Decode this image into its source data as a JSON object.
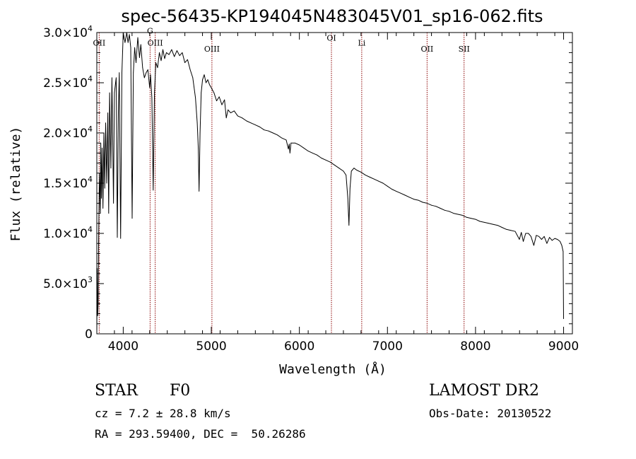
{
  "chart_data": {
    "type": "line",
    "title": "spec-56435-KP194045N483045V01_sp16-062.fits",
    "xlabel": "Wavelength (Å)",
    "ylabel": "Flux (relative)",
    "xlim": [
      3700,
      9100
    ],
    "ylim": [
      0,
      30000
    ],
    "x_ticks": [
      {
        "value": 4000,
        "label": "4000"
      },
      {
        "value": 5000,
        "label": "5000"
      },
      {
        "value": 6000,
        "label": "6000"
      },
      {
        "value": 7000,
        "label": "7000"
      },
      {
        "value": 8000,
        "label": "8000"
      },
      {
        "value": 9000,
        "label": "9000"
      }
    ],
    "y_ticks": [
      {
        "value": 0,
        "mant": "0",
        "exp": ""
      },
      {
        "value": 5000,
        "mant": "5.0×10",
        "exp": "3"
      },
      {
        "value": 10000,
        "mant": "1.0×10",
        "exp": "4"
      },
      {
        "value": 15000,
        "mant": "1.5×10",
        "exp": "4"
      },
      {
        "value": 20000,
        "mant": "2.0×10",
        "exp": "4"
      },
      {
        "value": 25000,
        "mant": "2.5×10",
        "exp": "4"
      },
      {
        "value": 30000,
        "mant": "3.0×10",
        "exp": "4"
      }
    ],
    "line_color": "#000000",
    "marker_color": "#8b0000",
    "spectral_lines": [
      {
        "label": "OII",
        "x": 3727,
        "label_y": 28700
      },
      {
        "label": "G",
        "x": 4305,
        "label_y": 29900
      },
      {
        "label": "OIII",
        "x": 4363,
        "label_y": 28700
      },
      {
        "label": "OIII",
        "x": 5007,
        "label_y": 28100
      },
      {
        "label": "OI",
        "x": 6364,
        "label_y": 29200
      },
      {
        "label": "Li",
        "x": 6708,
        "label_y": 28700
      },
      {
        "label": "OII",
        "x": 7450,
        "label_y": 28100
      },
      {
        "label": "SII",
        "x": 7870,
        "label_y": 28100
      }
    ],
    "series": [
      {
        "points": [
          [
            3700,
            200
          ],
          [
            3705,
            6500
          ],
          [
            3710,
            1800
          ],
          [
            3715,
            3000
          ],
          [
            3720,
            9000
          ],
          [
            3730,
            16000
          ],
          [
            3740,
            12000
          ],
          [
            3745,
            19000
          ],
          [
            3752,
            13500
          ],
          [
            3760,
            18500
          ],
          [
            3770,
            12500
          ],
          [
            3780,
            20000
          ],
          [
            3790,
            14500
          ],
          [
            3800,
            21000
          ],
          [
            3812,
            15000
          ],
          [
            3825,
            22000
          ],
          [
            3835,
            12000
          ],
          [
            3845,
            24000
          ],
          [
            3860,
            16500
          ],
          [
            3872,
            25500
          ],
          [
            3880,
            20000
          ],
          [
            3889,
            13000
          ],
          [
            3900,
            24000
          ],
          [
            3920,
            25500
          ],
          [
            3933,
            9600
          ],
          [
            3945,
            22000
          ],
          [
            3955,
            26000
          ],
          [
            3970,
            9500
          ],
          [
            3985,
            26000
          ],
          [
            4000,
            30000
          ],
          [
            4020,
            29000
          ],
          [
            4040,
            30200
          ],
          [
            4055,
            29000
          ],
          [
            4070,
            29800
          ],
          [
            4085,
            28500
          ],
          [
            4101,
            11500
          ],
          [
            4115,
            26000
          ],
          [
            4130,
            28500
          ],
          [
            4145,
            27000
          ],
          [
            4165,
            29500
          ],
          [
            4185,
            27500
          ],
          [
            4200,
            28800
          ],
          [
            4220,
            26500
          ],
          [
            4240,
            25500
          ],
          [
            4260,
            26000
          ],
          [
            4280,
            26300
          ],
          [
            4300,
            24500
          ],
          [
            4310,
            25800
          ],
          [
            4325,
            23500
          ],
          [
            4340,
            14300
          ],
          [
            4355,
            24000
          ],
          [
            4370,
            27000
          ],
          [
            4390,
            26500
          ],
          [
            4410,
            28000
          ],
          [
            4430,
            27200
          ],
          [
            4450,
            28300
          ],
          [
            4470,
            27400
          ],
          [
            4490,
            28000
          ],
          [
            4520,
            27800
          ],
          [
            4550,
            28300
          ],
          [
            4580,
            27600
          ],
          [
            4610,
            28200
          ],
          [
            4640,
            27700
          ],
          [
            4670,
            28000
          ],
          [
            4700,
            27000
          ],
          [
            4730,
            27300
          ],
          [
            4760,
            26300
          ],
          [
            4790,
            25500
          ],
          [
            4820,
            23500
          ],
          [
            4840,
            21000
          ],
          [
            4852,
            18500
          ],
          [
            4861,
            14200
          ],
          [
            4872,
            20000
          ],
          [
            4885,
            24000
          ],
          [
            4900,
            25300
          ],
          [
            4920,
            25800
          ],
          [
            4940,
            25000
          ],
          [
            4960,
            25300
          ],
          [
            4980,
            24800
          ],
          [
            5000,
            24500
          ],
          [
            5030,
            24000
          ],
          [
            5060,
            23200
          ],
          [
            5090,
            23600
          ],
          [
            5120,
            22800
          ],
          [
            5150,
            23300
          ],
          [
            5170,
            21500
          ],
          [
            5190,
            22300
          ],
          [
            5220,
            22000
          ],
          [
            5260,
            22200
          ],
          [
            5300,
            21700
          ],
          [
            5350,
            21500
          ],
          [
            5400,
            21200
          ],
          [
            5450,
            21000
          ],
          [
            5500,
            20800
          ],
          [
            5550,
            20600
          ],
          [
            5600,
            20300
          ],
          [
            5650,
            20200
          ],
          [
            5700,
            20000
          ],
          [
            5750,
            19800
          ],
          [
            5800,
            19500
          ],
          [
            5850,
            19300
          ],
          [
            5875,
            18400
          ],
          [
            5885,
            18900
          ],
          [
            5893,
            18000
          ],
          [
            5905,
            19000
          ],
          [
            5950,
            19000
          ],
          [
            6000,
            18800
          ],
          [
            6050,
            18500
          ],
          [
            6100,
            18200
          ],
          [
            6150,
            18000
          ],
          [
            6200,
            17800
          ],
          [
            6250,
            17500
          ],
          [
            6300,
            17300
          ],
          [
            6350,
            17100
          ],
          [
            6400,
            16800
          ],
          [
            6450,
            16500
          ],
          [
            6500,
            16200
          ],
          [
            6530,
            15800
          ],
          [
            6550,
            13500
          ],
          [
            6563,
            10800
          ],
          [
            6575,
            14500
          ],
          [
            6590,
            16200
          ],
          [
            6620,
            16500
          ],
          [
            6650,
            16300
          ],
          [
            6700,
            16100
          ],
          [
            6750,
            15800
          ],
          [
            6800,
            15600
          ],
          [
            6850,
            15400
          ],
          [
            6900,
            15200
          ],
          [
            6950,
            15000
          ],
          [
            7000,
            14700
          ],
          [
            7050,
            14400
          ],
          [
            7100,
            14200
          ],
          [
            7150,
            14000
          ],
          [
            7200,
            13800
          ],
          [
            7250,
            13600
          ],
          [
            7300,
            13400
          ],
          [
            7350,
            13300
          ],
          [
            7400,
            13100
          ],
          [
            7450,
            13000
          ],
          [
            7500,
            12800
          ],
          [
            7550,
            12700
          ],
          [
            7600,
            12500
          ],
          [
            7650,
            12300
          ],
          [
            7700,
            12200
          ],
          [
            7750,
            12000
          ],
          [
            7800,
            11900
          ],
          [
            7850,
            11800
          ],
          [
            7900,
            11600
          ],
          [
            7950,
            11500
          ],
          [
            8000,
            11400
          ],
          [
            8050,
            11200
          ],
          [
            8100,
            11100
          ],
          [
            8150,
            11000
          ],
          [
            8200,
            10900
          ],
          [
            8250,
            10800
          ],
          [
            8300,
            10600
          ],
          [
            8350,
            10400
          ],
          [
            8400,
            10300
          ],
          [
            8450,
            10200
          ],
          [
            8498,
            9400
          ],
          [
            8520,
            10100
          ],
          [
            8542,
            9200
          ],
          [
            8570,
            10000
          ],
          [
            8600,
            10000
          ],
          [
            8630,
            9700
          ],
          [
            8662,
            8800
          ],
          [
            8690,
            9800
          ],
          [
            8720,
            9700
          ],
          [
            8750,
            9400
          ],
          [
            8780,
            9700
          ],
          [
            8810,
            9000
          ],
          [
            8840,
            9600
          ],
          [
            8870,
            9300
          ],
          [
            8900,
            9500
          ],
          [
            8930,
            9400
          ],
          [
            8960,
            9200
          ],
          [
            8980,
            8800
          ],
          [
            8995,
            8200
          ],
          [
            9000,
            1500
          ]
        ]
      }
    ]
  },
  "info": {
    "object_class": "STAR",
    "subclass": "F0",
    "cz": "cz = 7.2 ± 28.8 km/s",
    "coords": "RA = 293.59400, DEC =  50.26286",
    "survey": "LAMOST DR2",
    "obs_date": "Obs-Date: 20130522"
  }
}
